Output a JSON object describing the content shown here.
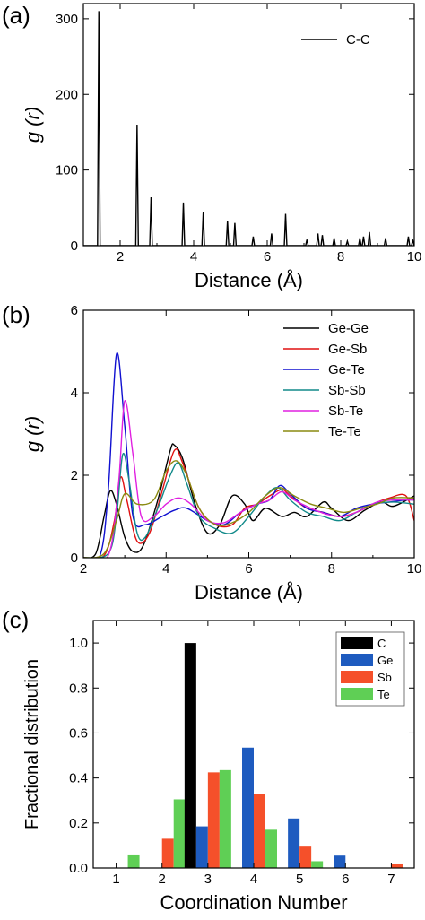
{
  "panels": [
    {
      "letter": "(a)"
    },
    {
      "letter": "(b)"
    },
    {
      "letter": "(c)"
    }
  ],
  "chart_data": [
    {
      "type": "line",
      "panel": "(a)",
      "xlabel": "Distance (Å)",
      "ylabel": "g (r)",
      "xlim": [
        1,
        10
      ],
      "ylim": [
        0,
        320
      ],
      "xticks": [
        2,
        4,
        6,
        8,
        10
      ],
      "yticks": [
        0,
        100,
        200,
        300
      ],
      "legend_position": "top-right",
      "series": [
        {
          "name": "C-C",
          "color": "#000000",
          "peaks": [
            [
              1.42,
              310
            ],
            [
              2.46,
              160
            ],
            [
              2.84,
              64
            ],
            [
              3.72,
              57
            ],
            [
              4.26,
              45
            ],
            [
              4.92,
              33
            ],
            [
              5.12,
              30
            ],
            [
              5.62,
              12
            ],
            [
              6.12,
              16
            ],
            [
              6.5,
              42
            ],
            [
              7.08,
              8
            ],
            [
              7.38,
              16
            ],
            [
              7.5,
              14
            ],
            [
              7.82,
              10
            ],
            [
              8.18,
              6
            ],
            [
              8.52,
              10
            ],
            [
              8.62,
              12
            ],
            [
              8.78,
              18
            ],
            [
              9.22,
              10
            ],
            [
              9.84,
              12
            ],
            [
              9.96,
              8
            ]
          ]
        }
      ]
    },
    {
      "type": "line",
      "panel": "(b)",
      "xlabel": "Distance (Å)",
      "ylabel": "g (r)",
      "xlim": [
        2,
        10
      ],
      "ylim": [
        0,
        6
      ],
      "xticks": [
        2,
        4,
        6,
        8,
        10
      ],
      "yticks": [
        0,
        2,
        4,
        6
      ],
      "legend_position": "top-right",
      "series": [
        {
          "name": "Ge-Ge",
          "color": "#000000",
          "points": [
            [
              2.0,
              0
            ],
            [
              2.3,
              0.1
            ],
            [
              2.5,
              1.0
            ],
            [
              2.65,
              1.62
            ],
            [
              2.8,
              1.3
            ],
            [
              3.0,
              0.5
            ],
            [
              3.2,
              0.15
            ],
            [
              3.45,
              0.3
            ],
            [
              3.8,
              1.4
            ],
            [
              4.1,
              2.6
            ],
            [
              4.2,
              2.73
            ],
            [
              4.4,
              2.4
            ],
            [
              4.7,
              1.3
            ],
            [
              5.0,
              0.6
            ],
            [
              5.3,
              0.8
            ],
            [
              5.6,
              1.5
            ],
            [
              5.9,
              1.3
            ],
            [
              6.1,
              0.9
            ],
            [
              6.4,
              1.2
            ],
            [
              6.8,
              1.0
            ],
            [
              7.1,
              1.1
            ],
            [
              7.4,
              1.0
            ],
            [
              7.8,
              1.35
            ],
            [
              8.0,
              1.2
            ],
            [
              8.4,
              0.9
            ],
            [
              8.8,
              1.15
            ],
            [
              9.2,
              1.35
            ],
            [
              9.5,
              1.25
            ],
            [
              10.0,
              1.5
            ]
          ]
        },
        {
          "name": "Ge-Sb",
          "color": "#e01010",
          "points": [
            [
              2.0,
              0
            ],
            [
              2.5,
              0.05
            ],
            [
              2.75,
              0.9
            ],
            [
              2.9,
              1.95
            ],
            [
              3.05,
              1.4
            ],
            [
              3.3,
              0.4
            ],
            [
              3.6,
              0.6
            ],
            [
              3.9,
              1.6
            ],
            [
              4.2,
              2.6
            ],
            [
              4.4,
              2.3
            ],
            [
              4.8,
              1.2
            ],
            [
              5.2,
              0.8
            ],
            [
              5.6,
              0.8
            ],
            [
              5.9,
              1.2
            ],
            [
              6.2,
              1.3
            ],
            [
              6.5,
              1.5
            ],
            [
              6.8,
              1.65
            ],
            [
              7.0,
              1.5
            ],
            [
              7.4,
              1.2
            ],
            [
              7.8,
              1.1
            ],
            [
              8.2,
              1.0
            ],
            [
              8.6,
              1.1
            ],
            [
              9.0,
              1.3
            ],
            [
              9.4,
              1.45
            ],
            [
              9.8,
              1.5
            ],
            [
              10.0,
              0.9
            ]
          ]
        },
        {
          "name": "Ge-Te",
          "color": "#1010d0",
          "points": [
            [
              2.0,
              0
            ],
            [
              2.4,
              0.05
            ],
            [
              2.6,
              1.6
            ],
            [
              2.8,
              4.93
            ],
            [
              3.0,
              3.2
            ],
            [
              3.2,
              1.0
            ],
            [
              3.5,
              0.8
            ],
            [
              3.9,
              1.0
            ],
            [
              4.2,
              1.15
            ],
            [
              4.5,
              1.2
            ],
            [
              5.0,
              0.9
            ],
            [
              5.4,
              0.8
            ],
            [
              5.8,
              1.1
            ],
            [
              6.2,
              1.3
            ],
            [
              6.5,
              1.4
            ],
            [
              6.75,
              1.75
            ],
            [
              7.0,
              1.55
            ],
            [
              7.4,
              1.2
            ],
            [
              7.8,
              1.1
            ],
            [
              8.2,
              1.0
            ],
            [
              8.6,
              1.2
            ],
            [
              9.0,
              1.3
            ],
            [
              9.4,
              1.35
            ],
            [
              9.8,
              1.4
            ],
            [
              10.0,
              1.4
            ]
          ]
        },
        {
          "name": "Sb-Sb",
          "color": "#128a8a",
          "points": [
            [
              2.0,
              0
            ],
            [
              2.6,
              0.1
            ],
            [
              2.8,
              1.0
            ],
            [
              2.95,
              2.5
            ],
            [
              3.1,
              1.9
            ],
            [
              3.3,
              0.6
            ],
            [
              3.5,
              0.5
            ],
            [
              3.8,
              1.2
            ],
            [
              4.1,
              2.0
            ],
            [
              4.3,
              2.3
            ],
            [
              4.5,
              1.8
            ],
            [
              4.8,
              1.0
            ],
            [
              5.2,
              0.7
            ],
            [
              5.6,
              0.6
            ],
            [
              6.0,
              1.0
            ],
            [
              6.4,
              1.5
            ],
            [
              6.7,
              1.7
            ],
            [
              7.0,
              1.4
            ],
            [
              7.4,
              1.1
            ],
            [
              7.8,
              1.0
            ],
            [
              8.2,
              0.9
            ],
            [
              8.6,
              1.1
            ],
            [
              9.0,
              1.3
            ],
            [
              9.5,
              1.35
            ],
            [
              10.0,
              1.3
            ]
          ]
        },
        {
          "name": "Sb-Te",
          "color": "#e020e0",
          "points": [
            [
              2.0,
              0
            ],
            [
              2.6,
              0.05
            ],
            [
              2.85,
              1.8
            ],
            [
              3.0,
              3.8
            ],
            [
              3.2,
              2.5
            ],
            [
              3.4,
              1.0
            ],
            [
              3.7,
              1.0
            ],
            [
              4.0,
              1.3
            ],
            [
              4.3,
              1.45
            ],
            [
              4.6,
              1.3
            ],
            [
              5.0,
              0.9
            ],
            [
              5.4,
              0.85
            ],
            [
              5.8,
              1.1
            ],
            [
              6.2,
              1.3
            ],
            [
              6.5,
              1.4
            ],
            [
              6.8,
              1.6
            ],
            [
              7.1,
              1.4
            ],
            [
              7.5,
              1.2
            ],
            [
              7.9,
              1.05
            ],
            [
              8.3,
              1.0
            ],
            [
              8.7,
              1.15
            ],
            [
              9.1,
              1.35
            ],
            [
              9.5,
              1.4
            ],
            [
              10.0,
              1.4
            ]
          ]
        },
        {
          "name": "Te-Te",
          "color": "#8a8a10",
          "points": [
            [
              2.0,
              0
            ],
            [
              2.5,
              0.1
            ],
            [
              2.8,
              0.9
            ],
            [
              3.0,
              1.55
            ],
            [
              3.3,
              1.3
            ],
            [
              3.7,
              1.4
            ],
            [
              4.0,
              2.1
            ],
            [
              4.25,
              2.35
            ],
            [
              4.5,
              2.0
            ],
            [
              4.8,
              1.2
            ],
            [
              5.2,
              0.8
            ],
            [
              5.6,
              0.85
            ],
            [
              6.0,
              1.1
            ],
            [
              6.4,
              1.5
            ],
            [
              6.75,
              1.7
            ],
            [
              7.1,
              1.5
            ],
            [
              7.5,
              1.3
            ],
            [
              7.9,
              1.2
            ],
            [
              8.3,
              1.1
            ],
            [
              8.7,
              1.2
            ],
            [
              9.1,
              1.3
            ],
            [
              9.5,
              1.45
            ],
            [
              10.0,
              1.45
            ]
          ]
        }
      ]
    },
    {
      "type": "bar",
      "panel": "(c)",
      "xlabel": "Coordination Number",
      "ylabel": "Fractional distribution",
      "xlim": [
        0.5,
        7.5
      ],
      "ylim": [
        0,
        1.1
      ],
      "xticks": [
        1,
        2,
        3,
        4,
        5,
        6,
        7
      ],
      "yticks": [
        0.0,
        0.2,
        0.4,
        0.6,
        0.8,
        1.0
      ],
      "legend_position": "top-right",
      "categories": [
        1,
        2,
        3,
        4,
        5,
        6,
        7
      ],
      "series": [
        {
          "name": "C",
          "color": "#000000",
          "values": [
            0,
            0,
            1.0,
            0,
            0,
            0,
            0
          ]
        },
        {
          "name": "Ge",
          "color": "#1e5bbf",
          "values": [
            0,
            0,
            0.185,
            0.535,
            0.22,
            0.055,
            0
          ]
        },
        {
          "name": "Sb",
          "color": "#f5502a",
          "values": [
            0,
            0.13,
            0.425,
            0.33,
            0.095,
            0,
            0.02
          ]
        },
        {
          "name": "Te",
          "color": "#5fcf55",
          "values": [
            0.06,
            0.305,
            0.435,
            0.17,
            0.03,
            0,
            0
          ]
        }
      ]
    }
  ]
}
